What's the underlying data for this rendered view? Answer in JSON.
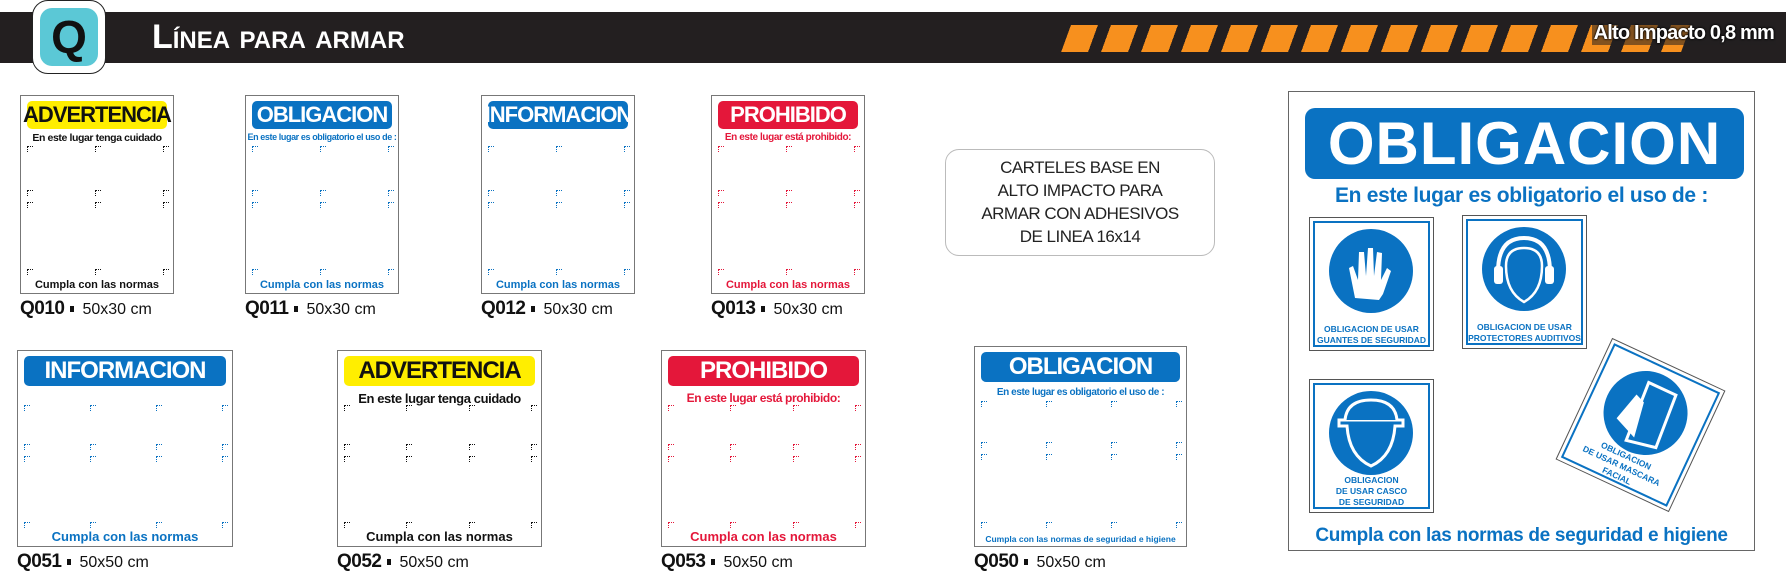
{
  "header": {
    "badge_letter": "Q",
    "title": "Línea para armar",
    "material": "Alto Impacto 0,8 mm",
    "colors": {
      "bar": "#231f20",
      "badge": "#5bc8d6",
      "stripes": "#f7901e"
    }
  },
  "themes": {
    "advertencia": {
      "bg": "#ffee00",
      "fg": "#111111",
      "text": "#111111"
    },
    "obligacion": {
      "bg": "#0a72c2",
      "fg": "#ffffff",
      "text": "#0a72c2"
    },
    "informacion": {
      "bg": "#0a72c2",
      "fg": "#ffffff",
      "text": "#0a72c2"
    },
    "prohibido": {
      "bg": "#e4173a",
      "fg": "#ffffff",
      "text": "#e4173a"
    }
  },
  "signs": [
    {
      "code": "Q010",
      "size": "50x30 cm",
      "theme": "advertencia",
      "header": "ADVERTENCIA",
      "subtitle": "En este lugar tenga cuidado",
      "footer": "Cumpla con las normas"
    },
    {
      "code": "Q011",
      "size": "50x30 cm",
      "theme": "obligacion",
      "header": "OBLIGACION",
      "subtitle": "En este lugar es obligatorio el uso de :",
      "footer": "Cumpla con las normas"
    },
    {
      "code": "Q012",
      "size": "50x30 cm",
      "theme": "informacion",
      "header": "INFORMACION",
      "subtitle": "",
      "footer": "Cumpla con las normas"
    },
    {
      "code": "Q013",
      "size": "50x30 cm",
      "theme": "prohibido",
      "header": "PROHIBIDO",
      "subtitle": "En este lugar está prohibido:",
      "footer": "Cumpla con las normas"
    },
    {
      "code": "Q051",
      "size": "50x50 cm",
      "theme": "informacion",
      "header": "INFORMACION",
      "subtitle": "",
      "footer": "Cumpla con las normas"
    },
    {
      "code": "Q052",
      "size": "50x50 cm",
      "theme": "advertencia",
      "header": "ADVERTENCIA",
      "subtitle": "En este lugar tenga cuidado",
      "footer": "Cumpla con las normas"
    },
    {
      "code": "Q053",
      "size": "50x50 cm",
      "theme": "prohibido",
      "header": "PROHIBIDO",
      "subtitle": "En este lugar está prohibido:",
      "footer": "Cumpla con las normas"
    },
    {
      "code": "Q050",
      "size": "50x50 cm",
      "theme": "obligacion",
      "header": "OBLIGACION",
      "subtitle": "En este lugar es obligatorio el uso de :",
      "footer": "Cumpla con las normas de seguridad e higiene"
    }
  ],
  "callout": {
    "lines": [
      "CARTELES BASE EN",
      "ALTO IMPACTO PARA",
      "ARMAR CON ADHESIVOS",
      "DE LINEA 16x14"
    ]
  },
  "example": {
    "header": "OBLIGACION",
    "subtitle": "En este lugar es obligatorio el uso de :",
    "footer": "Cumpla con las normas de seguridad e higiene",
    "pictograms": [
      {
        "icon": "gloves-icon",
        "lines": [
          "OBLIGACION DE USAR",
          "GUANTES DE SEGURIDAD"
        ]
      },
      {
        "icon": "ear-protection-icon",
        "lines": [
          "OBLIGACION DE USAR",
          "PROTECTORES AUDITIVOS"
        ]
      },
      {
        "icon": "helmet-icon",
        "lines": [
          "OBLIGACION",
          "DE USAR CASCO",
          "DE SEGURIDAD"
        ]
      },
      {
        "icon": "face-shield-icon",
        "lines": [
          "OBLIGACION",
          "DE USAR MASCARA",
          "FACIAL"
        ]
      }
    ]
  }
}
